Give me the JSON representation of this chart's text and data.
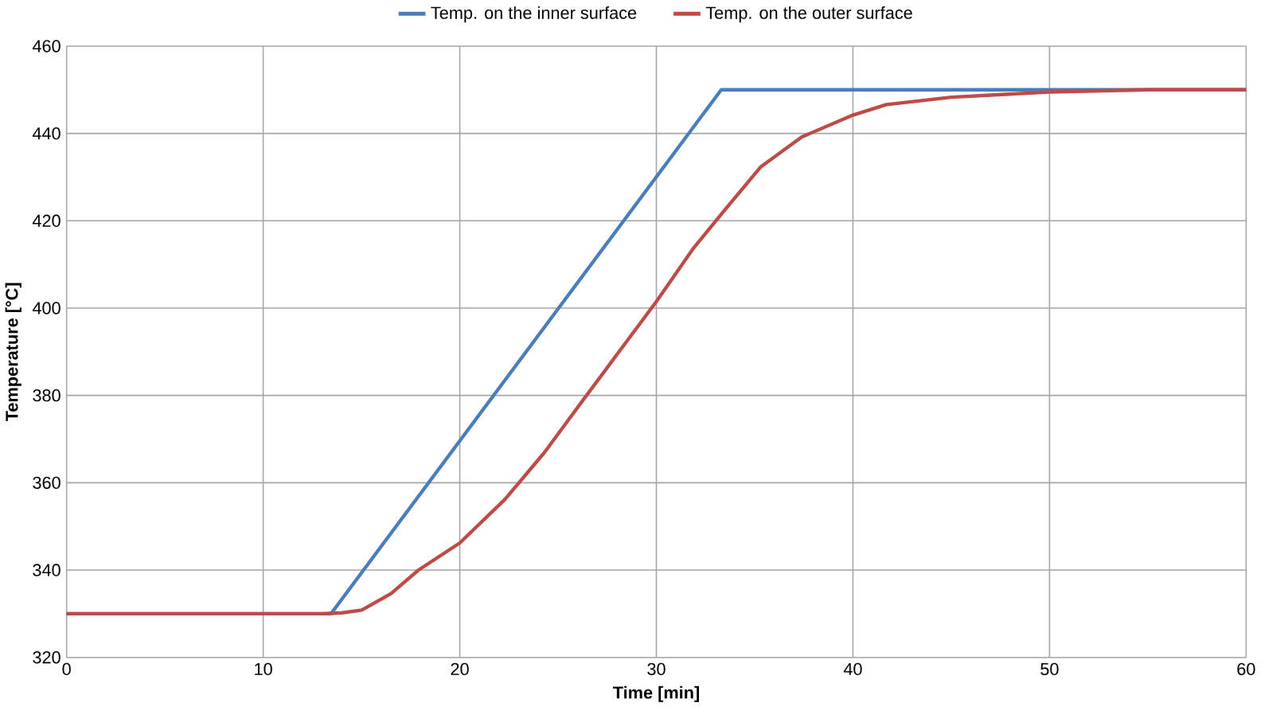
{
  "chart_data": {
    "type": "line",
    "xlabel": "Time [min]",
    "ylabel": "Temperature [°C]",
    "xlim": [
      0,
      60
    ],
    "ylim": [
      320,
      460
    ],
    "xticks": [
      0,
      10,
      20,
      30,
      40,
      50,
      60
    ],
    "yticks": [
      320,
      340,
      360,
      380,
      400,
      420,
      440,
      460
    ],
    "grid": true,
    "legend": "top",
    "line_style": "solid",
    "marker": "none",
    "series": [
      {
        "name": "Temp. on the inner surface",
        "color": "#4a7ebb",
        "x": [
          0,
          13.45,
          33.3,
          60
        ],
        "values": [
          330,
          330,
          450,
          450
        ]
      },
      {
        "name": "Temp. on the outer surface",
        "color": "#be4b48",
        "x": [
          0,
          13,
          14,
          15,
          16.5,
          17.9,
          20,
          22.3,
          24.3,
          26.2,
          28.1,
          30,
          31.9,
          33.3,
          35.3,
          37.4,
          40,
          41.7,
          45,
          50,
          55,
          60
        ],
        "values": [
          330,
          330,
          330.2,
          330.8,
          334.6,
          340,
          346.2,
          356.2,
          366.9,
          378.5,
          390,
          401.5,
          413.8,
          421.5,
          432.3,
          439.2,
          444.2,
          446.6,
          448.3,
          449.5,
          450,
          450
        ]
      }
    ]
  }
}
